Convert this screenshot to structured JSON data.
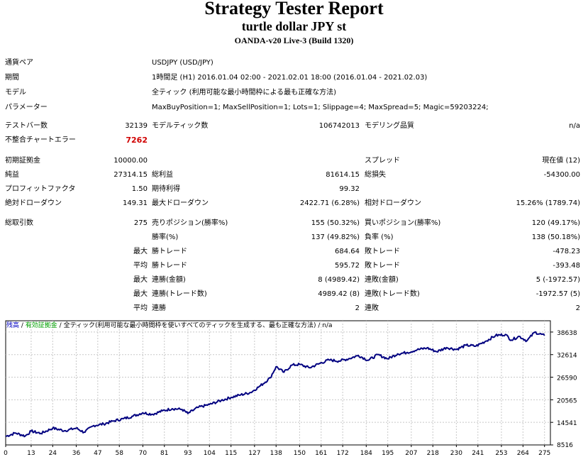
{
  "header": {
    "title": "Strategy Tester Report",
    "subtitle": "turtle dollar JPY st",
    "server": "OANDA-v20 Live-3 (Build 1320)"
  },
  "info": {
    "symbol_label": "通貨ペア",
    "symbol_value": "USDJPY (USD/JPY)",
    "period_label": "期間",
    "period_value": "1時間足 (H1) 2016.01.04 02:00 - 2021.02.01 18:00 (2016.01.04 - 2021.02.03)",
    "model_label": "モデル",
    "model_value": "全ティック (利用可能な最小時間枠による最も正確な方法)",
    "params_label": "パラメーター",
    "params_value": "MaxBuyPosition=1; MaxSellPosition=1; Lots=1; Slippage=4; MaxSpread=5; Magic=59203224;"
  },
  "stats": {
    "bars_label": "テストバー数",
    "bars_value": "32139",
    "ticks_label": "モデルティック数",
    "ticks_value": "106742013",
    "quality_label": "モデリング品質",
    "quality_value": "n/a",
    "mismatch_label": "不整合チャートエラー",
    "mismatch_value": "7262",
    "deposit_label": "初期証拠金",
    "deposit_value": "10000.00",
    "spread_label": "スプレッド",
    "spread_value": "現在値 (12)",
    "net_label": "純益",
    "net_value": "27314.15",
    "gross_profit_label": "総利益",
    "gross_profit_value": "81614.15",
    "gross_loss_label": "総損失",
    "gross_loss_value": "-54300.00",
    "pf_label": "プロフィットファクタ",
    "pf_value": "1.50",
    "expected_label": "期待利得",
    "expected_value": "99.32",
    "abs_dd_label": "絶対ドローダウン",
    "abs_dd_value": "149.31",
    "max_dd_label": "最大ドローダウン",
    "max_dd_value": "2422.71 (6.28%)",
    "rel_dd_label": "相対ドローダウン",
    "rel_dd_value": "15.26% (1789.74)",
    "trades_label": "総取引数",
    "trades_value": "275",
    "short_label": "売りポジション(勝率%)",
    "short_value": "155 (50.32%)",
    "long_label": "買いポジション(勝率%)",
    "long_value": "120 (49.17%)",
    "win_label": "勝率(%)",
    "win_value": "137 (49.82%)",
    "loss_label": "負率 (%)",
    "loss_value": "138 (50.18%)",
    "largest_label": "最大",
    "largest_win_label": "勝トレード",
    "largest_win_value": "684.64",
    "largest_loss_label": "敗トレード",
    "largest_loss_value": "-478.23",
    "average_label": "平均",
    "avg_win_label": "勝トレード",
    "avg_win_value": "595.72",
    "avg_loss_label": "敗トレード",
    "avg_loss_value": "-393.48",
    "max_consec_label": "最大",
    "consec_wins_money_label": "連勝(金額)",
    "consec_wins_money_value": "8 (4989.42)",
    "consec_losses_money_label": "連敗(金額)",
    "consec_losses_money_value": "5 (-1972.57)",
    "max_consec2_label": "最大",
    "consec_profit_label": "連勝(トレード数)",
    "consec_profit_value": "4989.42 (8)",
    "consec_loss_label": "連敗(トレード数)",
    "consec_loss_value": "-1972.57 (5)",
    "avg_consec_label": "平均",
    "avg_consec_wins_label": "連勝",
    "avg_consec_wins_value": "2",
    "avg_consec_losses_label": "連敗",
    "avg_consec_losses_value": "2"
  },
  "legend": {
    "balance": "残高",
    "sep1": " / ",
    "equity": "有効証拠金",
    "sep2": " / ",
    "model": "全ティック(利用可能な最小時間枠を使いすべてのティックを生成する、最も正確な方法)",
    "sep3": " / ",
    "quality": "n/a"
  },
  "colors": {
    "balance": "#000080",
    "grid": "#c8c8c8",
    "frame": "#000000"
  },
  "chart_data": {
    "type": "line",
    "xlabel": "",
    "ylabel": "",
    "x_ticks": [
      0,
      13,
      24,
      36,
      47,
      58,
      70,
      81,
      93,
      104,
      115,
      127,
      138,
      150,
      161,
      172,
      184,
      195,
      207,
      218,
      230,
      241,
      253,
      264,
      275
    ],
    "y_ticks": [
      8516,
      14541,
      20565,
      26590,
      32614,
      38638
    ],
    "xlim": [
      0,
      278
    ],
    "ylim": [
      8516,
      41650
    ],
    "series": [
      {
        "name": "",
        "x": [
          0,
          5,
          10,
          13,
          18,
          24,
          30,
          36,
          40,
          45,
          50,
          55,
          60,
          65,
          70,
          75,
          80,
          85,
          90,
          93,
          98,
          104,
          110,
          115,
          120,
          125,
          130,
          135,
          138,
          142,
          146,
          150,
          155,
          160,
          165,
          170,
          175,
          180,
          185,
          190,
          195,
          200,
          205,
          210,
          215,
          220,
          225,
          230,
          235,
          240,
          245,
          250,
          255,
          258,
          262,
          266,
          270,
          275
        ],
        "values": [
          10800,
          11700,
          10900,
          12200,
          11600,
          13000,
          12300,
          13000,
          11900,
          13700,
          14100,
          14900,
          15500,
          16200,
          17100,
          16700,
          17600,
          18200,
          18000,
          16900,
          18500,
          19300,
          20400,
          21200,
          21900,
          22500,
          24300,
          26400,
          29400,
          27900,
          29800,
          30000,
          29100,
          30200,
          31200,
          30900,
          31500,
          32400,
          31100,
          32600,
          31500,
          32800,
          33200,
          33900,
          34400,
          33400,
          34500,
          34000,
          35100,
          34900,
          36200,
          37700,
          38000,
          36500,
          37500,
          36300,
          38600,
          37700
        ]
      }
    ]
  }
}
